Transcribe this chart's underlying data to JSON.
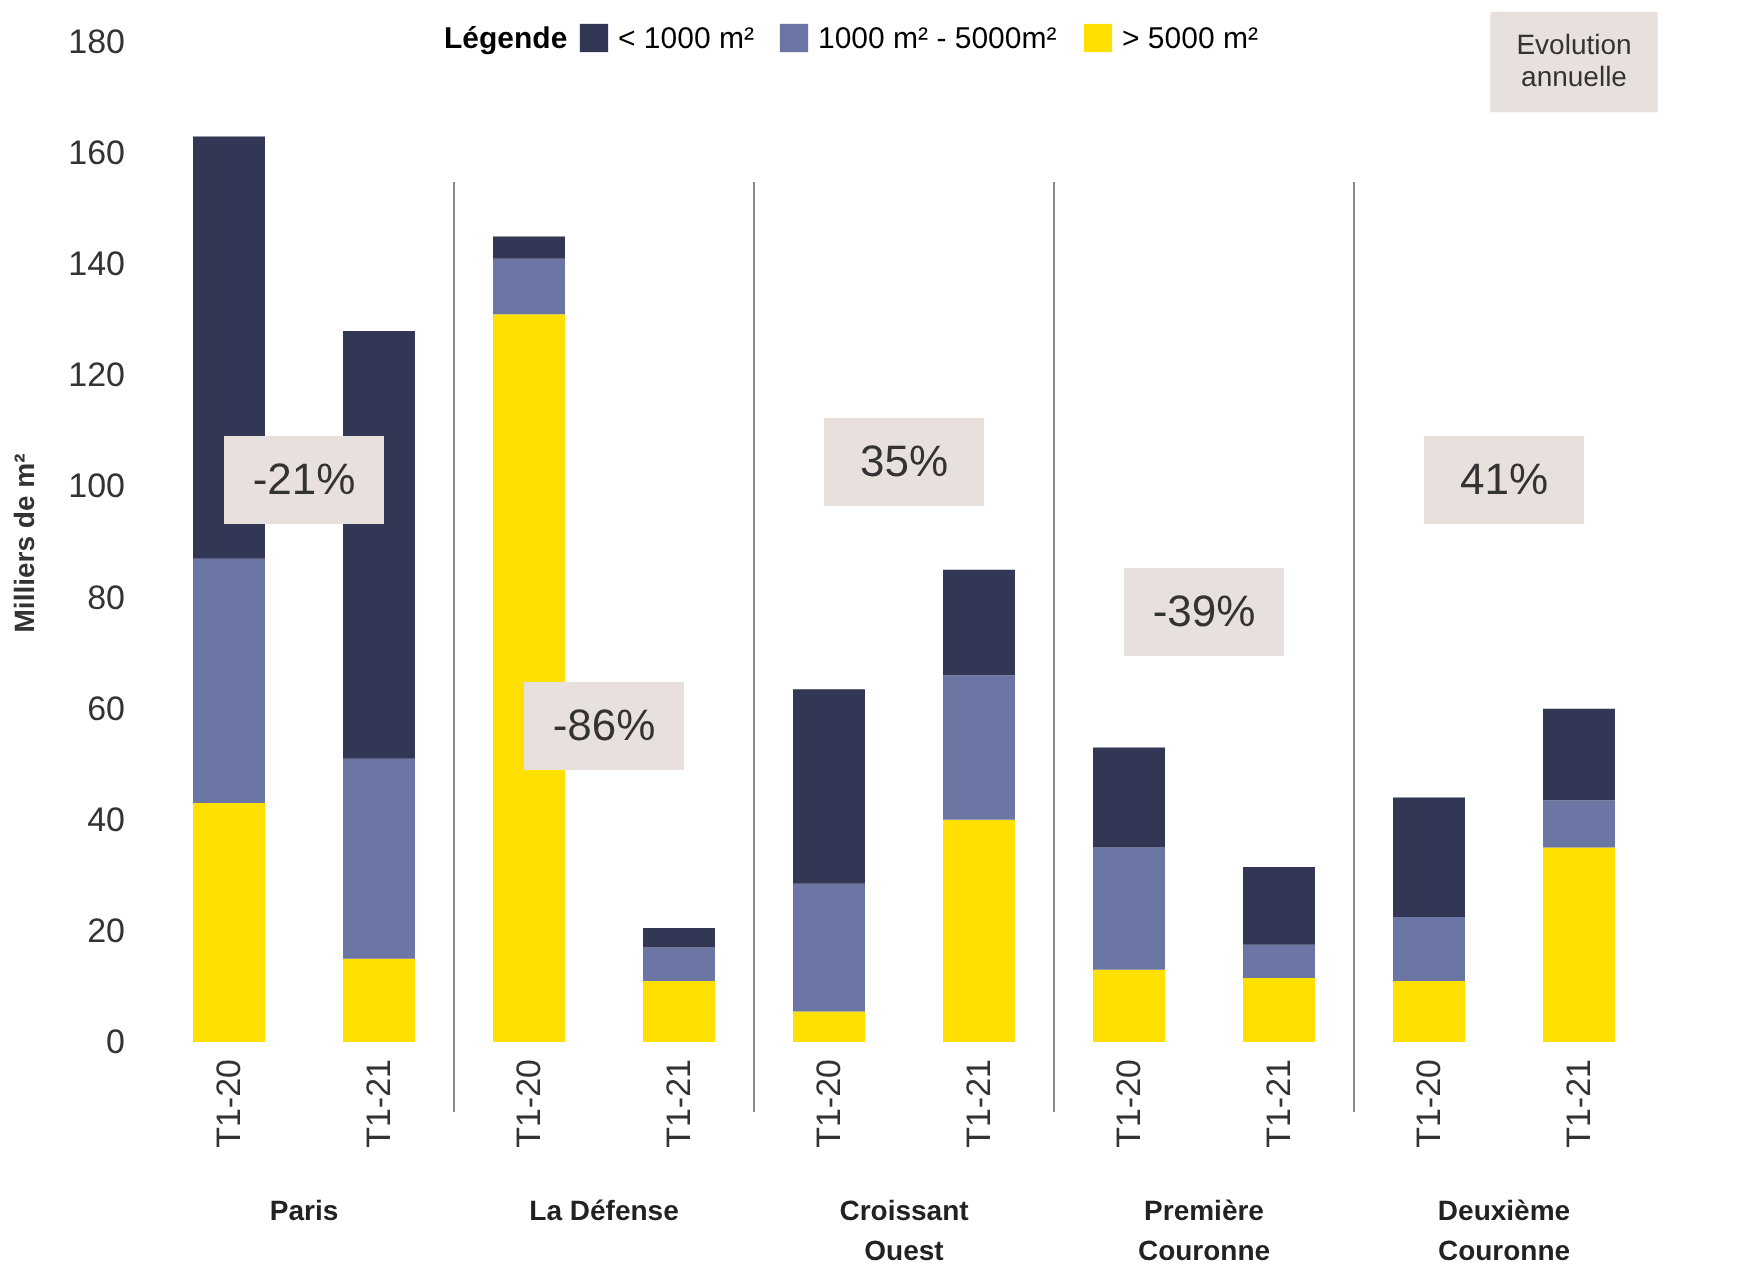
{
  "chart_data": {
    "type": "bar",
    "stacked": true,
    "ylabel": "Milliers de m²",
    "legend_title": "Légende",
    "legend": "top",
    "categories": [
      "T1-20",
      "T1-21",
      "T1-20",
      "T1-21",
      "T1-20",
      "T1-21",
      "T1-20",
      "T1-21",
      "T1-20",
      "T1-21"
    ],
    "series": [
      {
        "name": "> 5000 m²",
        "color": "#ffe000",
        "values": [
          43,
          15,
          131,
          11,
          5.5,
          40,
          13,
          11.5,
          11,
          35
        ]
      },
      {
        "name": "1000 m² - 5000m²",
        "color": "#6b76a4",
        "values": [
          44,
          36,
          10,
          6,
          23,
          26,
          22,
          6,
          11.5,
          8.5
        ]
      },
      {
        "name": "< 1000 m²",
        "color": "#323755",
        "values": [
          76,
          77,
          4,
          3.5,
          35,
          19,
          18,
          14,
          21.5,
          16.5
        ]
      }
    ],
    "ylim": [
      0,
      180
    ],
    "yticks": [
      0,
      20,
      40,
      60,
      80,
      100,
      120,
      140,
      160,
      180
    ],
    "grid": false,
    "annotations": [
      "Paris",
      "La Défense",
      "Croissant Ouest",
      "Première Couronne",
      "Deuxième Couronne",
      "-21%",
      "-86%",
      "35%",
      "-39%",
      "41%",
      "Evolution annuelle"
    ]
  }
}
